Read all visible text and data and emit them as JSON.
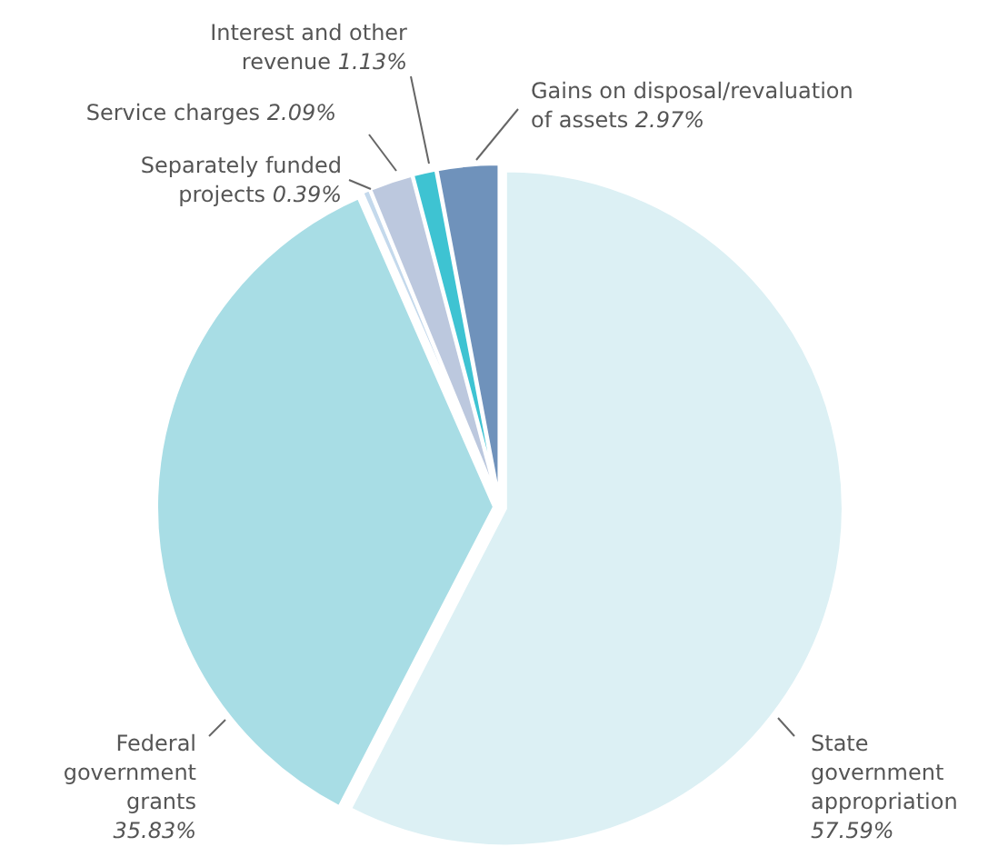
{
  "chart_data": {
    "type": "pie",
    "categories": [
      "State government appropriation",
      "Federal government grants",
      "Separately funded projects",
      "Service charges",
      "Interest and other revenue",
      "Gains on disposal/revaluation of assets"
    ],
    "values": [
      57.59,
      35.83,
      0.39,
      2.09,
      1.13,
      2.97
    ],
    "value_labels": [
      "57.59%",
      "35.83%",
      "0.39%",
      "2.09%",
      "1.13%",
      "2.97%"
    ],
    "colors": [
      "#dcf0f4",
      "#a8dde5",
      "#c4d9ec",
      "#bcc8de",
      "#3ec3d2",
      "#6f92bb"
    ]
  }
}
